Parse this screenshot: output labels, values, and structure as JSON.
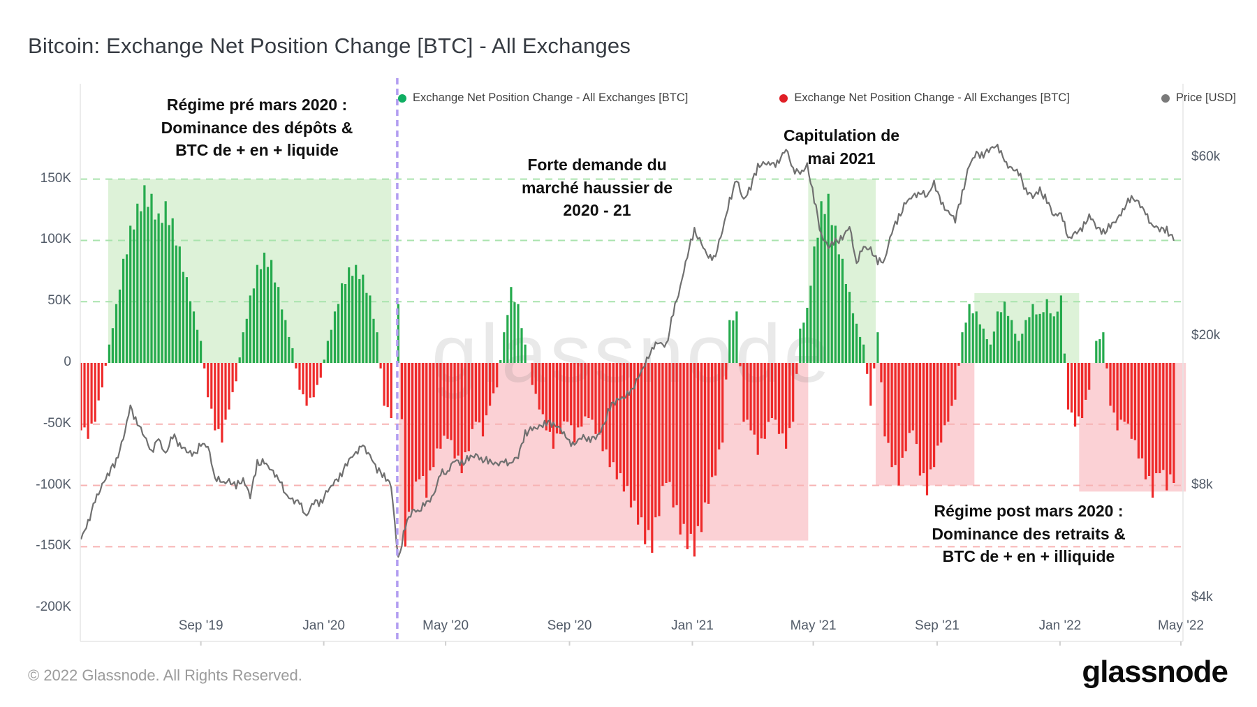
{
  "header": {
    "title": "Bitcoin: Exchange Net Position Change [BTC] - All Exchanges"
  },
  "legend": {
    "items": [
      {
        "label": "Exchange Net Position Change - All Exchanges [BTC]",
        "color": "#0fae62"
      },
      {
        "label": "Exchange Net Position Change - All Exchanges [BTC]",
        "color": "#e01f26"
      },
      {
        "label": "Price [USD]",
        "color": "#7a7a7a"
      }
    ]
  },
  "annotations": {
    "pre_march": "Régime pré mars 2020 :\nDominance des dépôts &\nBTC de + en + liquide",
    "bull_demand": "Forte demande du\nmarché haussier de\n2020 - 21",
    "capitulation": "Capitulation de\nmai 2021",
    "post_march": "Régime post mars 2020 :\nDominance des retraits &\nBTC de + en + illiquide"
  },
  "watermark": "glassnode",
  "footer": {
    "copyright": "© 2022 Glassnode. All Rights Reserved.",
    "logo_text": "glassnode"
  },
  "chart_data": {
    "type": "bar",
    "title": "Bitcoin: Exchange Net Position Change [BTC] - All Exchanges",
    "start_date": "2019-05-05",
    "interval_days": 7,
    "left_axis": {
      "unit": "BTC",
      "ylim_k": [
        -210,
        185
      ],
      "ticks": [
        {
          "label": "150K",
          "value": 150
        },
        {
          "label": "100K",
          "value": 100
        },
        {
          "label": "50K",
          "value": 50
        },
        {
          "label": "0",
          "value": 0
        },
        {
          "label": "-50K",
          "value": -50
        },
        {
          "label": "-100K",
          "value": -100
        },
        {
          "label": "-150K",
          "value": -150
        },
        {
          "label": "-200K",
          "value": -200
        }
      ],
      "gridlines": [
        {
          "value": 150,
          "color": "#a9e3ad"
        },
        {
          "value": 100,
          "color": "#a9e3ad"
        },
        {
          "value": 50,
          "color": "#a9e3ad"
        },
        {
          "value": -50,
          "color": "#f7b3b3"
        },
        {
          "value": -100,
          "color": "#f7b3b3"
        },
        {
          "value": -150,
          "color": "#f7b3b3"
        }
      ]
    },
    "right_axis": {
      "unit": "USD",
      "scale": "log",
      "ticks": [
        {
          "label": "$60k",
          "value": 60000
        },
        {
          "label": "$20k",
          "value": 20000
        },
        {
          "label": "$8k",
          "value": 8000
        },
        {
          "label": "$4k",
          "value": 4000
        }
      ]
    },
    "x_axis": {
      "ticks": [
        {
          "label": "Sep '19",
          "date": "2019-09-01"
        },
        {
          "label": "Jan '20",
          "date": "2020-01-01"
        },
        {
          "label": "May '20",
          "date": "2020-05-01"
        },
        {
          "label": "Sep '20",
          "date": "2020-09-01"
        },
        {
          "label": "Jan '21",
          "date": "2021-01-01"
        },
        {
          "label": "May '21",
          "date": "2021-05-01"
        },
        {
          "label": "Sep '21",
          "date": "2021-09-01"
        },
        {
          "label": "Jan '22",
          "date": "2022-01-01"
        },
        {
          "label": "May '22",
          "date": "2022-05-01"
        }
      ]
    },
    "regions": [
      {
        "name": "regime-pre-march-2020",
        "from": "2019-06-01",
        "to": "2020-03-08",
        "y1_k": 0,
        "y2_k": 150,
        "color": "#ddf2d8"
      },
      {
        "name": "post-march-withdraw-regime",
        "from": "2020-03-16",
        "to": "2021-04-26",
        "y1_k": -145,
        "y2_k": 0,
        "color": "#fbd1d5"
      },
      {
        "name": "capitulation-may-2021",
        "from": "2021-04-26",
        "to": "2021-07-02",
        "y1_k": 0,
        "y2_k": 150,
        "color": "#ddf2d8"
      },
      {
        "name": "summer-2021-outflow",
        "from": "2021-07-02",
        "to": "2021-10-08",
        "y1_k": -100,
        "y2_k": 0,
        "color": "#fbd1d5"
      },
      {
        "name": "q4-2021-inflow",
        "from": "2021-10-08",
        "to": "2022-01-20",
        "y1_k": 0,
        "y2_k": 57,
        "color": "#ddf2d8"
      },
      {
        "name": "2022-outflow",
        "from": "2022-01-20",
        "to": "2022-05-06",
        "y1_k": -105,
        "y2_k": 0,
        "color": "#fbd1d5"
      }
    ],
    "split_line": {
      "date": "2020-03-14",
      "color": "#b29df1",
      "style": "dashed"
    },
    "series": [
      {
        "name": "Exchange Net Position Change - All Exchanges [BTC]",
        "type": "bar",
        "axis": "left",
        "unit": "K BTC per period",
        "color_positive": "#25aa4d",
        "color_negative": "#ee2a2a",
        "values_k": [
          -55,
          -62,
          -48,
          -20,
          15,
          48,
          85,
          112,
          130,
          145,
          138,
          122,
          132,
          118,
          95,
          70,
          42,
          18,
          -28,
          -55,
          -65,
          -38,
          -15,
          25,
          55,
          80,
          90,
          84,
          62,
          35,
          12,
          -22,
          -35,
          -28,
          -12,
          18,
          42,
          65,
          78,
          80,
          72,
          55,
          25,
          -35,
          -45,
          48,
          -150,
          -120,
          -95,
          -110,
          -85,
          -70,
          -62,
          -78,
          -90,
          -72,
          -48,
          -60,
          -35,
          -20,
          25,
          62,
          48,
          15,
          -18,
          -38,
          -55,
          -70,
          -58,
          -48,
          -65,
          -52,
          -45,
          -58,
          -72,
          -85,
          -95,
          -105,
          -118,
          -132,
          -148,
          -155,
          -125,
          -98,
          -118,
          -140,
          -152,
          -158,
          -138,
          -115,
          -92,
          -65,
          35,
          42,
          -48,
          -55,
          -75,
          -62,
          -45,
          -58,
          -70,
          -48,
          28,
          45,
          95,
          132,
          138,
          112,
          85,
          58,
          32,
          15,
          -35,
          25,
          -60,
          -85,
          -100,
          -72,
          -55,
          -92,
          -108,
          -85,
          -65,
          -48,
          -30,
          25,
          48,
          42,
          28,
          15,
          42,
          50,
          35,
          18,
          35,
          48,
          40,
          52,
          38,
          55,
          -38,
          -52,
          -45,
          -22,
          18,
          25,
          -35,
          -55,
          -48,
          -62,
          -78,
          -95,
          -110,
          -90,
          -104,
          -98
        ]
      },
      {
        "name": "Price [USD]",
        "type": "line",
        "axis": "right",
        "unit": "USD",
        "color": "#707070",
        "values": [
          5750,
          6400,
          7250,
          8050,
          8700,
          9300,
          10700,
          12900,
          11800,
          10800,
          9900,
          10600,
          9700,
          10900,
          10300,
          9900,
          9600,
          10350,
          10150,
          8450,
          8100,
          8250,
          7950,
          8350,
          7500,
          9150,
          9250,
          8750,
          8450,
          7550,
          7350,
          7150,
          6650,
          7250,
          7200,
          7750,
          8150,
          8650,
          9350,
          9850,
          10150,
          9650,
          8800,
          8550,
          7950,
          5050,
          6250,
          6850,
          6900,
          7150,
          7550,
          8600,
          8750,
          9350,
          9150,
          9450,
          9650,
          9400,
          9250,
          9150,
          9200,
          9250,
          9550,
          11050,
          11300,
          11450,
          11850,
          11650,
          11400,
          10500,
          10350,
          10750,
          10700,
          10650,
          11400,
          12950,
          13550,
          13800,
          14150,
          15550,
          16750,
          18750,
          19200,
          18850,
          23100,
          27100,
          33100,
          38200,
          35500,
          32200,
          33100,
          38300,
          46300,
          52100,
          46200,
          50400,
          56900,
          58100,
          57100,
          58900,
          63200,
          56200,
          54000,
          57400,
          46400,
          37300,
          34700,
          35700,
          36700,
          39200,
          31600,
          34500,
          34200,
          31500,
          32100,
          38200,
          41500,
          45600,
          47100,
          48800,
          47100,
          51700,
          45100,
          43200,
          41000,
          48200,
          57400,
          61300,
          61200,
          63300,
          65000,
          58100,
          56300,
          54700,
          49300,
          47100,
          48900,
          46200,
          41800,
          43100,
          36200,
          37900,
          38500,
          42400,
          39200,
          37800,
          39400,
          41000,
          44500,
          46800,
          45800,
          42200,
          39700,
          38600,
          38600,
          36000
        ]
      }
    ]
  }
}
